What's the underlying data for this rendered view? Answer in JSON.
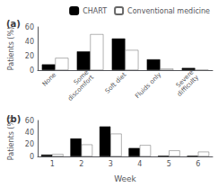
{
  "chart_data": [
    {
      "type": "bar",
      "title": "(a)",
      "categories": [
        "None",
        "Some\ndiscomfort",
        "Soft diet",
        "Fluids only",
        "Severe\ndifficulty"
      ],
      "series": [
        {
          "name": "CHART",
          "color": "#000000",
          "values": [
            8,
            26,
            44,
            15,
            3
          ]
        },
        {
          "name": "Conventional medicine",
          "color": "#ffffff",
          "values": [
            17,
            50,
            28,
            2,
            0
          ]
        }
      ],
      "ylabel": "Patients (%)",
      "ylim": [
        0,
        60
      ],
      "yticks": [
        0,
        20,
        40,
        60
      ],
      "legend": "upper right"
    },
    {
      "type": "bar",
      "title": "(b)",
      "categories": [
        "1",
        "2",
        "3",
        "4",
        "5",
        "6"
      ],
      "series": [
        {
          "name": "CHART",
          "color": "#000000",
          "values": [
            3,
            30,
            50,
            14,
            1,
            1
          ]
        },
        {
          "name": "Conventional medicine",
          "color": "#ffffff",
          "values": [
            4,
            20,
            38,
            19,
            10,
            8
          ]
        }
      ],
      "ylabel": "Patients (%)",
      "xlabel": "Week",
      "ylim": [
        0,
        60
      ],
      "yticks": [
        0,
        20,
        40,
        60
      ]
    }
  ]
}
